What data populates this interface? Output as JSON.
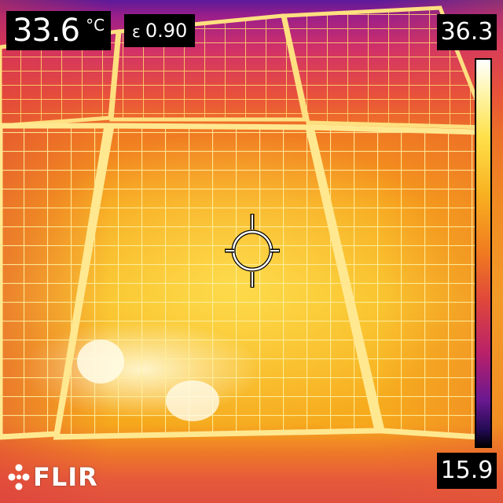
{
  "measurement": {
    "spot_temperature": "33.6",
    "unit": "°C"
  },
  "emissivity": {
    "symbol": "ε",
    "value": "0.90"
  },
  "color_scale": {
    "max": "36.3",
    "min": "15.9",
    "palette": "iron",
    "top_color": "#ffffff",
    "bottom_color": "#000000"
  },
  "brand": {
    "logo_text": "FLIR",
    "logo_icon": "flir-snowflake-icon"
  },
  "reticle": {
    "icon": "crosshair-icon"
  },
  "scene": {
    "subject": "solar-panel-array"
  }
}
